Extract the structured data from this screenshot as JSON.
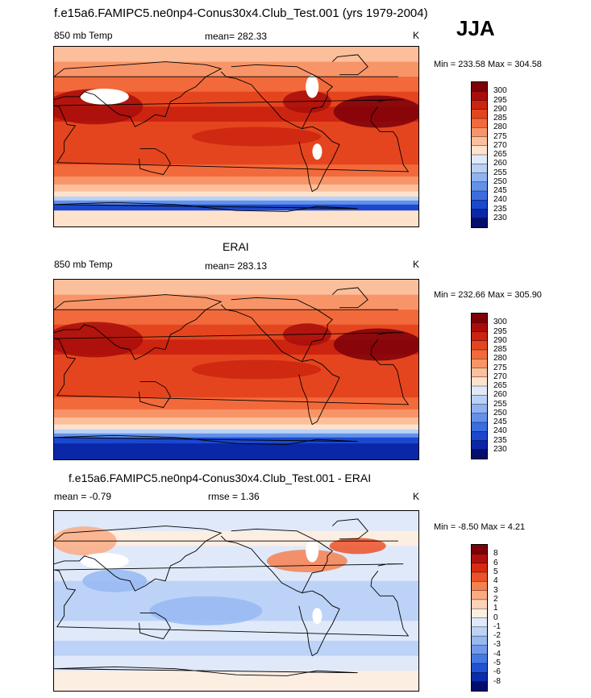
{
  "figure": {
    "title": "f.e15a6.FAMIPC5.ne0np4-Conus30x4.Club_Test.001 (yrs 1979-2004)",
    "season": "JJA"
  },
  "colors": {
    "land_outline": "#000000",
    "missing": "#ffffff"
  },
  "chart_data": [
    {
      "type": "heatmap",
      "id": "model",
      "title": "",
      "left_label": "850 mb Temp",
      "center_label": "mean= 282.33",
      "right_label": "K",
      "stats": "Min = 233.58 Max = 304.58",
      "mean": 282.33,
      "min": 233.58,
      "max": 304.58,
      "colorbar_levels": [
        "300",
        "295",
        "290",
        "285",
        "280",
        "275",
        "270",
        "265",
        "260",
        "255",
        "250",
        "245",
        "240",
        "235",
        "230"
      ],
      "colorbar_colors": [
        "#7d0009",
        "#a80d0b",
        "#cc2410",
        "#e5451e",
        "#f26a3b",
        "#f89568",
        "#fcbf9b",
        "#fee2cc",
        "#dfe9fa",
        "#b9d1f7",
        "#8fb3f1",
        "#6291ea",
        "#3b6de0",
        "#1b48cf",
        "#0a27a8",
        "#020d6e"
      ]
    },
    {
      "type": "heatmap",
      "id": "obs",
      "title": "ERAI",
      "left_label": "850 mb Temp",
      "center_label": "mean= 283.13",
      "right_label": "K",
      "stats": "Min = 232.66 Max = 305.90",
      "mean": 283.13,
      "min": 232.66,
      "max": 305.9,
      "colorbar_levels": [
        "300",
        "295",
        "290",
        "285",
        "280",
        "275",
        "270",
        "265",
        "260",
        "255",
        "250",
        "245",
        "240",
        "235",
        "230"
      ],
      "colorbar_colors": [
        "#7d0009",
        "#a80d0b",
        "#cc2410",
        "#e5451e",
        "#f26a3b",
        "#f89568",
        "#fcbf9b",
        "#fee2cc",
        "#dfe9fa",
        "#b9d1f7",
        "#8fb3f1",
        "#6291ea",
        "#3b6de0",
        "#1b48cf",
        "#0a27a8",
        "#020d6e"
      ]
    },
    {
      "type": "heatmap",
      "id": "diff",
      "title": "f.e15a6.FAMIPC5.ne0np4-Conus30x4.Club_Test.001 - ERAI",
      "left_label": "mean =  -0.79",
      "center_label": "rmse =   1.36",
      "right_label": "K",
      "stats": "Min =  -8.50 Max =   4.21",
      "mean": -0.79,
      "rmse": 1.36,
      "min": -8.5,
      "max": 4.21,
      "colorbar_levels": [
        "8",
        "6",
        "5",
        "4",
        "3",
        "2",
        "1",
        "0",
        "-1",
        "-2",
        "-3",
        "-4",
        "-5",
        "-6",
        "-8"
      ],
      "colorbar_colors": [
        "#7d0009",
        "#b0100c",
        "#d62a13",
        "#ec5128",
        "#f6814f",
        "#fbab84",
        "#fdd2b8",
        "#fdeee2",
        "#dfe9fa",
        "#bcd2f7",
        "#97b9f2",
        "#6f9aec",
        "#4678e3",
        "#2152d3",
        "#0a2cae",
        "#020d6e"
      ]
    }
  ]
}
